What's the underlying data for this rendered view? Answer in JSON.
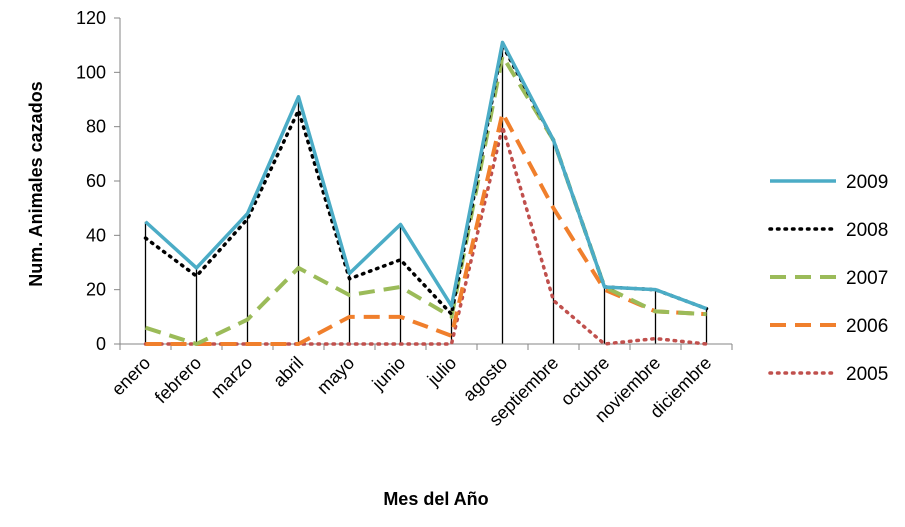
{
  "chart_data": {
    "type": "line",
    "xlabel": "Mes del Año",
    "ylabel": "Num. Animales cazados",
    "ylim": [
      0,
      120
    ],
    "yticks": [
      0,
      20,
      40,
      60,
      80,
      100,
      120
    ],
    "categories": [
      "enero",
      "febrero",
      "marzo",
      "abril",
      "mayo",
      "junio",
      "julio",
      "agosto",
      "septiembre",
      "octubre",
      "noviembre",
      "diciembre"
    ],
    "drop_lines": true,
    "legend_position": "right",
    "series": [
      {
        "name": "2009",
        "color": "#4BACC6",
        "dash": "solid",
        "values": [
          45,
          28,
          48,
          91,
          26,
          44,
          14,
          111,
          75,
          21,
          20,
          13
        ]
      },
      {
        "name": "2008",
        "color": "#000000",
        "dash": "dotted",
        "values": [
          39,
          25,
          46,
          86,
          24,
          31,
          11,
          110,
          75,
          21,
          20,
          13
        ]
      },
      {
        "name": "2007",
        "color": "#9BBB59",
        "dash": "dashed",
        "values": [
          6,
          0,
          9,
          28,
          18,
          21,
          10,
          106,
          75,
          21,
          12,
          11
        ]
      },
      {
        "name": "2006",
        "color": "#F07F2C",
        "dash": "dashed",
        "values": [
          0,
          0,
          0,
          0,
          10,
          10,
          3,
          85,
          50,
          20,
          12,
          11
        ]
      },
      {
        "name": "2005",
        "color": "#C0504D",
        "dash": "dotted",
        "values": [
          0,
          0,
          0,
          0,
          0,
          0,
          0,
          80,
          16,
          0,
          2,
          0
        ]
      }
    ]
  }
}
